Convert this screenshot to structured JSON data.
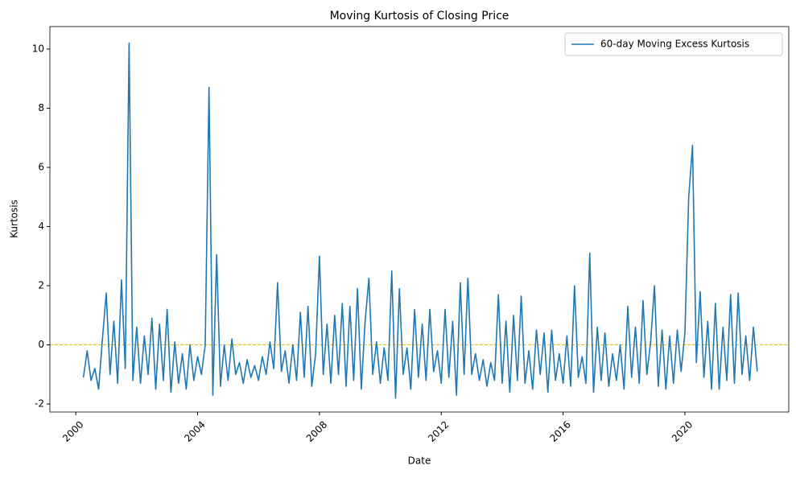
{
  "chart_data": {
    "type": "line",
    "title": "Moving Kurtosis of Closing Price",
    "x_label": "Date",
    "y_label": "Kurtosis",
    "x": [
      2000.25,
      2000.375,
      2000.5,
      2000.625,
      2000.75,
      2000.875,
      2001,
      2001.125,
      2001.25,
      2001.375,
      2001.5,
      2001.625,
      2001.75,
      2001.875,
      2002,
      2002.125,
      2002.25,
      2002.375,
      2002.5,
      2002.625,
      2002.75,
      2002.875,
      2003,
      2003.125,
      2003.25,
      2003.375,
      2003.5,
      2003.625,
      2003.75,
      2003.875,
      2004,
      2004.125,
      2004.25,
      2004.375,
      2004.5,
      2004.625,
      2004.75,
      2004.875,
      2005,
      2005.125,
      2005.25,
      2005.375,
      2005.5,
      2005.625,
      2005.75,
      2005.875,
      2006,
      2006.125,
      2006.25,
      2006.375,
      2006.5,
      2006.625,
      2006.75,
      2006.875,
      2007,
      2007.125,
      2007.25,
      2007.375,
      2007.5,
      2007.625,
      2007.75,
      2007.875,
      2008,
      2008.125,
      2008.25,
      2008.375,
      2008.5,
      2008.625,
      2008.75,
      2008.875,
      2009,
      2009.125,
      2009.25,
      2009.375,
      2009.5,
      2009.625,
      2009.75,
      2009.875,
      2010,
      2010.125,
      2010.25,
      2010.375,
      2010.5,
      2010.625,
      2010.75,
      2010.875,
      2011,
      2011.125,
      2011.25,
      2011.375,
      2011.5,
      2011.625,
      2011.75,
      2011.875,
      2012,
      2012.125,
      2012.25,
      2012.375,
      2012.5,
      2012.625,
      2012.75,
      2012.875,
      2013,
      2013.125,
      2013.25,
      2013.375,
      2013.5,
      2013.625,
      2013.75,
      2013.875,
      2014,
      2014.125,
      2014.25,
      2014.375,
      2014.5,
      2014.625,
      2014.75,
      2014.875,
      2015,
      2015.125,
      2015.25,
      2015.375,
      2015.5,
      2015.625,
      2015.75,
      2015.875,
      2016,
      2016.125,
      2016.25,
      2016.375,
      2016.5,
      2016.625,
      2016.75,
      2016.875,
      2017,
      2017.125,
      2017.25,
      2017.375,
      2017.5,
      2017.625,
      2017.75,
      2017.875,
      2018,
      2018.125,
      2018.25,
      2018.375,
      2018.5,
      2018.625,
      2018.75,
      2018.875,
      2019,
      2019.125,
      2019.25,
      2019.375,
      2019.5,
      2019.625,
      2019.75,
      2019.875,
      2020,
      2020.125,
      2020.25,
      2020.375,
      2020.5,
      2020.625,
      2020.75,
      2020.875,
      2021,
      2021.125,
      2021.25,
      2021.375,
      2021.5,
      2021.625,
      2021.75,
      2021.875,
      2022,
      2022.125,
      2022.25,
      2022.375
    ],
    "series": [
      {
        "name": "60-day Moving Excess Kurtosis",
        "color": "#1f77b4",
        "values": [
          -1.1,
          -0.2,
          -1.2,
          -0.8,
          -1.5,
          0.2,
          1.75,
          -1.0,
          0.8,
          -1.3,
          2.2,
          -0.8,
          10.2,
          -1.2,
          0.6,
          -1.3,
          0.3,
          -1.0,
          0.9,
          -1.5,
          0.7,
          -1.2,
          1.2,
          -1.6,
          0.1,
          -1.3,
          -0.3,
          -1.5,
          0.0,
          -1.2,
          -0.4,
          -1.0,
          0.0,
          8.7,
          -1.7,
          3.05,
          -1.4,
          0.0,
          -1.2,
          0.2,
          -1.0,
          -0.6,
          -1.3,
          -0.5,
          -1.1,
          -0.7,
          -1.2,
          -0.4,
          -1.0,
          0.1,
          -0.8,
          2.1,
          -0.9,
          -0.2,
          -1.3,
          0.0,
          -1.2,
          1.1,
          -1.1,
          1.3,
          -1.4,
          -0.3,
          3.0,
          -1.0,
          0.7,
          -1.3,
          1.0,
          -1.0,
          1.4,
          -1.4,
          1.3,
          -1.2,
          1.9,
          -1.5,
          0.8,
          2.25,
          -1.0,
          0.1,
          -1.3,
          -0.1,
          -1.2,
          2.5,
          -1.8,
          1.9,
          -1.0,
          -0.1,
          -1.5,
          1.2,
          -1.1,
          0.7,
          -1.2,
          1.2,
          -0.9,
          -0.2,
          -1.3,
          1.2,
          -1.1,
          0.8,
          -1.7,
          2.1,
          -1.0,
          2.25,
          -1.0,
          -0.3,
          -1.2,
          -0.5,
          -1.4,
          -0.6,
          -1.2,
          1.7,
          -1.3,
          0.8,
          -1.6,
          1.0,
          -1.2,
          1.65,
          -1.3,
          -0.2,
          -1.5,
          0.5,
          -1.0,
          0.4,
          -1.6,
          0.5,
          -1.2,
          -0.3,
          -1.3,
          0.3,
          -1.4,
          2.0,
          -1.1,
          -0.4,
          -1.3,
          3.1,
          -1.6,
          0.6,
          -1.2,
          0.4,
          -1.4,
          -0.3,
          -1.2,
          0.0,
          -1.5,
          1.3,
          -1.1,
          0.6,
          -1.3,
          1.5,
          -1.0,
          0.1,
          2.0,
          -1.4,
          0.5,
          -1.5,
          0.3,
          -1.3,
          0.5,
          -0.9,
          0.4,
          5.0,
          6.75,
          -0.6,
          1.8,
          -1.1,
          0.8,
          -1.5,
          1.4,
          -1.5,
          0.6,
          -1.2,
          1.7,
          -1.3,
          1.75,
          -1.0,
          0.3,
          -1.2,
          0.6,
          -0.9
        ]
      }
    ],
    "hline": {
      "y": 0,
      "color": "#e6b800"
    },
    "xlim": [
      1999.15,
      2023.41
    ],
    "xticks": [
      2000,
      2004,
      2008,
      2012,
      2016,
      2020
    ],
    "ylim": [
      -2.27,
      10.76
    ],
    "yticks": [
      -2,
      0,
      2,
      4,
      6,
      8,
      10
    ],
    "legend": "upper right",
    "grid": false
  }
}
